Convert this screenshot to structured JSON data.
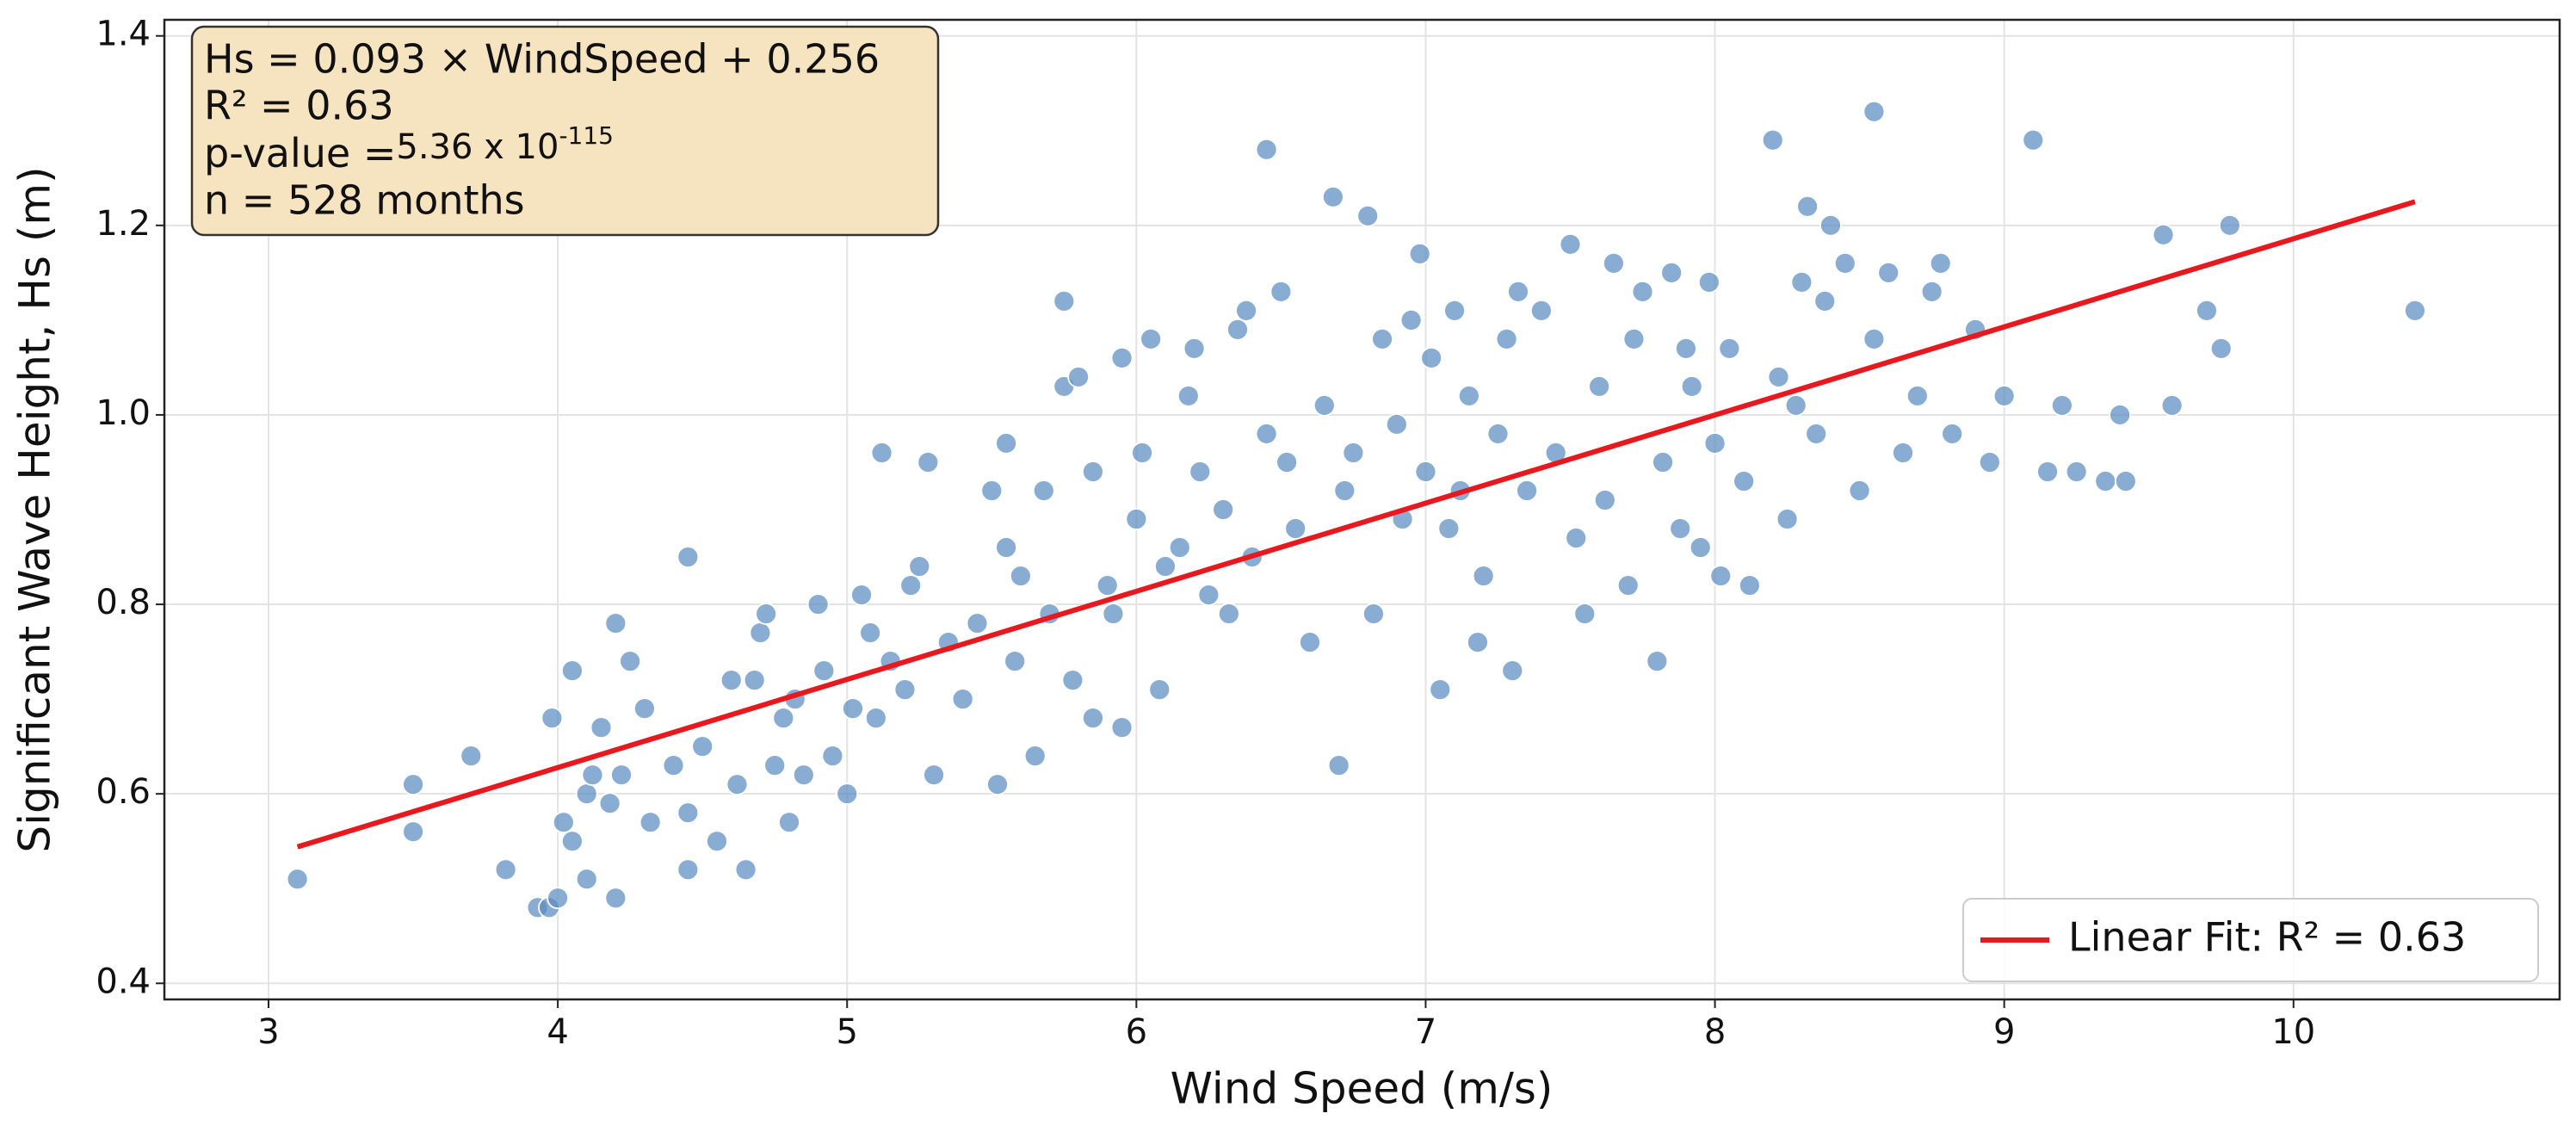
{
  "chart_data": {
    "type": "scatter",
    "xlabel": "Wind Speed (m/s)",
    "ylabel": "Significant Wave Height, Hs (m)",
    "annotation": {
      "line1": "Hs = 0.093 × WindSpeed + 0.256",
      "line2": "R² = 0.63",
      "line3a": "p-value =",
      "line3b": "5.36 x 10",
      "line3c": "-115",
      "line4": "n = 528 months"
    },
    "color": "#5b8cc0",
    "grid": true,
    "legend": "lower right",
    "xlim": [
      2.64,
      10.92
    ],
    "xticks": [
      3,
      4,
      5,
      6,
      7,
      8,
      9,
      10
    ],
    "ylim": [
      0.383,
      1.417
    ],
    "yticks": [
      0.4,
      0.6,
      0.8,
      {
        "value": 1,
        "label": "1.0"
      },
      1.2,
      1.4
    ],
    "x": [
      3.1,
      3.5,
      3.5,
      3.7,
      3.82,
      3.93,
      3.97,
      3.98,
      4.0,
      4.02,
      4.05,
      4.05,
      4.1,
      4.1,
      4.12,
      4.15,
      4.18,
      4.2,
      4.2,
      4.22,
      4.25,
      4.3,
      4.32,
      4.4,
      4.45,
      4.45,
      4.45,
      4.5,
      4.55,
      4.6,
      4.62,
      4.65,
      4.68,
      4.7,
      4.72,
      4.75,
      4.78,
      4.8,
      4.82,
      4.85,
      4.9,
      4.92,
      4.95,
      5.0,
      5.02,
      5.05,
      5.08,
      5.1,
      5.12,
      5.15,
      5.2,
      5.22,
      5.25,
      5.28,
      5.3,
      5.35,
      5.4,
      5.45,
      5.5,
      5.52,
      5.55,
      5.55,
      5.58,
      5.6,
      5.65,
      5.68,
      5.7,
      5.75,
      5.75,
      5.78,
      5.8,
      5.85,
      5.85,
      5.9,
      5.92,
      5.95,
      5.95,
      6.0,
      6.02,
      6.05,
      6.08,
      6.1,
      6.15,
      6.18,
      6.2,
      6.22,
      6.25,
      6.3,
      6.32,
      6.35,
      6.38,
      6.4,
      6.45,
      6.45,
      6.5,
      6.52,
      6.55,
      6.6,
      6.65,
      6.68,
      6.7,
      6.72,
      6.75,
      6.8,
      6.82,
      6.85,
      6.9,
      6.92,
      6.95,
      6.98,
      7.0,
      7.02,
      7.05,
      7.08,
      7.1,
      7.12,
      7.15,
      7.18,
      7.2,
      7.25,
      7.28,
      7.3,
      7.32,
      7.35,
      7.4,
      7.45,
      7.5,
      7.52,
      7.55,
      7.6,
      7.62,
      7.65,
      7.7,
      7.72,
      7.75,
      7.8,
      7.82,
      7.85,
      7.88,
      7.9,
      7.92,
      7.95,
      7.98,
      8.0,
      8.02,
      8.05,
      8.1,
      8.12,
      8.2,
      8.22,
      8.25,
      8.28,
      8.3,
      8.32,
      8.35,
      8.38,
      8.4,
      8.45,
      8.5,
      8.55,
      8.55,
      8.6,
      8.65,
      8.7,
      8.75,
      8.78,
      8.82,
      8.9,
      8.95,
      9.0,
      9.1,
      9.15,
      9.2,
      9.25,
      9.35,
      9.4,
      9.42,
      9.55,
      9.58,
      9.7,
      9.75,
      9.78,
      10.42
    ],
    "values": [
      0.51,
      0.61,
      0.56,
      0.64,
      0.52,
      0.48,
      0.48,
      0.68,
      0.49,
      0.57,
      0.73,
      0.55,
      0.6,
      0.51,
      0.62,
      0.67,
      0.59,
      0.78,
      0.49,
      0.62,
      0.74,
      0.69,
      0.57,
      0.63,
      0.85,
      0.52,
      0.58,
      0.65,
      0.55,
      0.72,
      0.61,
      0.52,
      0.72,
      0.77,
      0.79,
      0.63,
      0.68,
      0.57,
      0.7,
      0.62,
      0.8,
      0.73,
      0.64,
      0.6,
      0.69,
      0.81,
      0.77,
      0.68,
      0.96,
      0.74,
      0.71,
      0.82,
      0.84,
      0.95,
      0.62,
      0.76,
      0.7,
      0.78,
      0.92,
      0.61,
      0.97,
      0.86,
      0.74,
      0.83,
      0.64,
      0.92,
      0.79,
      1.12,
      1.03,
      0.72,
      1.04,
      0.94,
      0.68,
      0.82,
      0.79,
      0.67,
      1.06,
      0.89,
      0.96,
      1.08,
      0.71,
      0.84,
      0.86,
      1.02,
      1.07,
      0.94,
      0.81,
      0.9,
      0.79,
      1.09,
      1.11,
      0.85,
      1.28,
      0.98,
      1.13,
      0.95,
      0.88,
      0.76,
      1.01,
      1.23,
      0.63,
      0.92,
      0.96,
      1.21,
      0.79,
      1.08,
      0.99,
      0.89,
      1.1,
      1.17,
      0.94,
      1.06,
      0.71,
      0.88,
      1.11,
      0.92,
      1.02,
      0.76,
      0.83,
      0.98,
      1.08,
      0.73,
      1.13,
      0.92,
      1.11,
      0.96,
      1.18,
      0.87,
      0.79,
      1.03,
      0.91,
      1.16,
      0.82,
      1.08,
      1.13,
      0.74,
      0.95,
      1.15,
      0.88,
      1.07,
      1.03,
      0.86,
      1.14,
      0.97,
      0.83,
      1.07,
      0.93,
      0.82,
      1.29,
      1.04,
      0.89,
      1.01,
      1.14,
      1.22,
      0.98,
      1.12,
      1.2,
      1.16,
      0.92,
      1.32,
      1.08,
      1.15,
      0.96,
      1.02,
      1.13,
      1.16,
      0.98,
      1.09,
      0.95,
      1.02,
      1.29,
      0.94,
      1.01,
      0.94,
      0.93,
      1.0,
      0.93,
      1.19,
      1.01,
      1.11,
      1.07,
      1.2,
      1.11
    ],
    "fit": {
      "name": "Linear Fit: R² = 0.63",
      "color": "#e8191e",
      "x": [
        3.1,
        10.42
      ],
      "values": [
        0.544,
        1.225
      ]
    }
  }
}
